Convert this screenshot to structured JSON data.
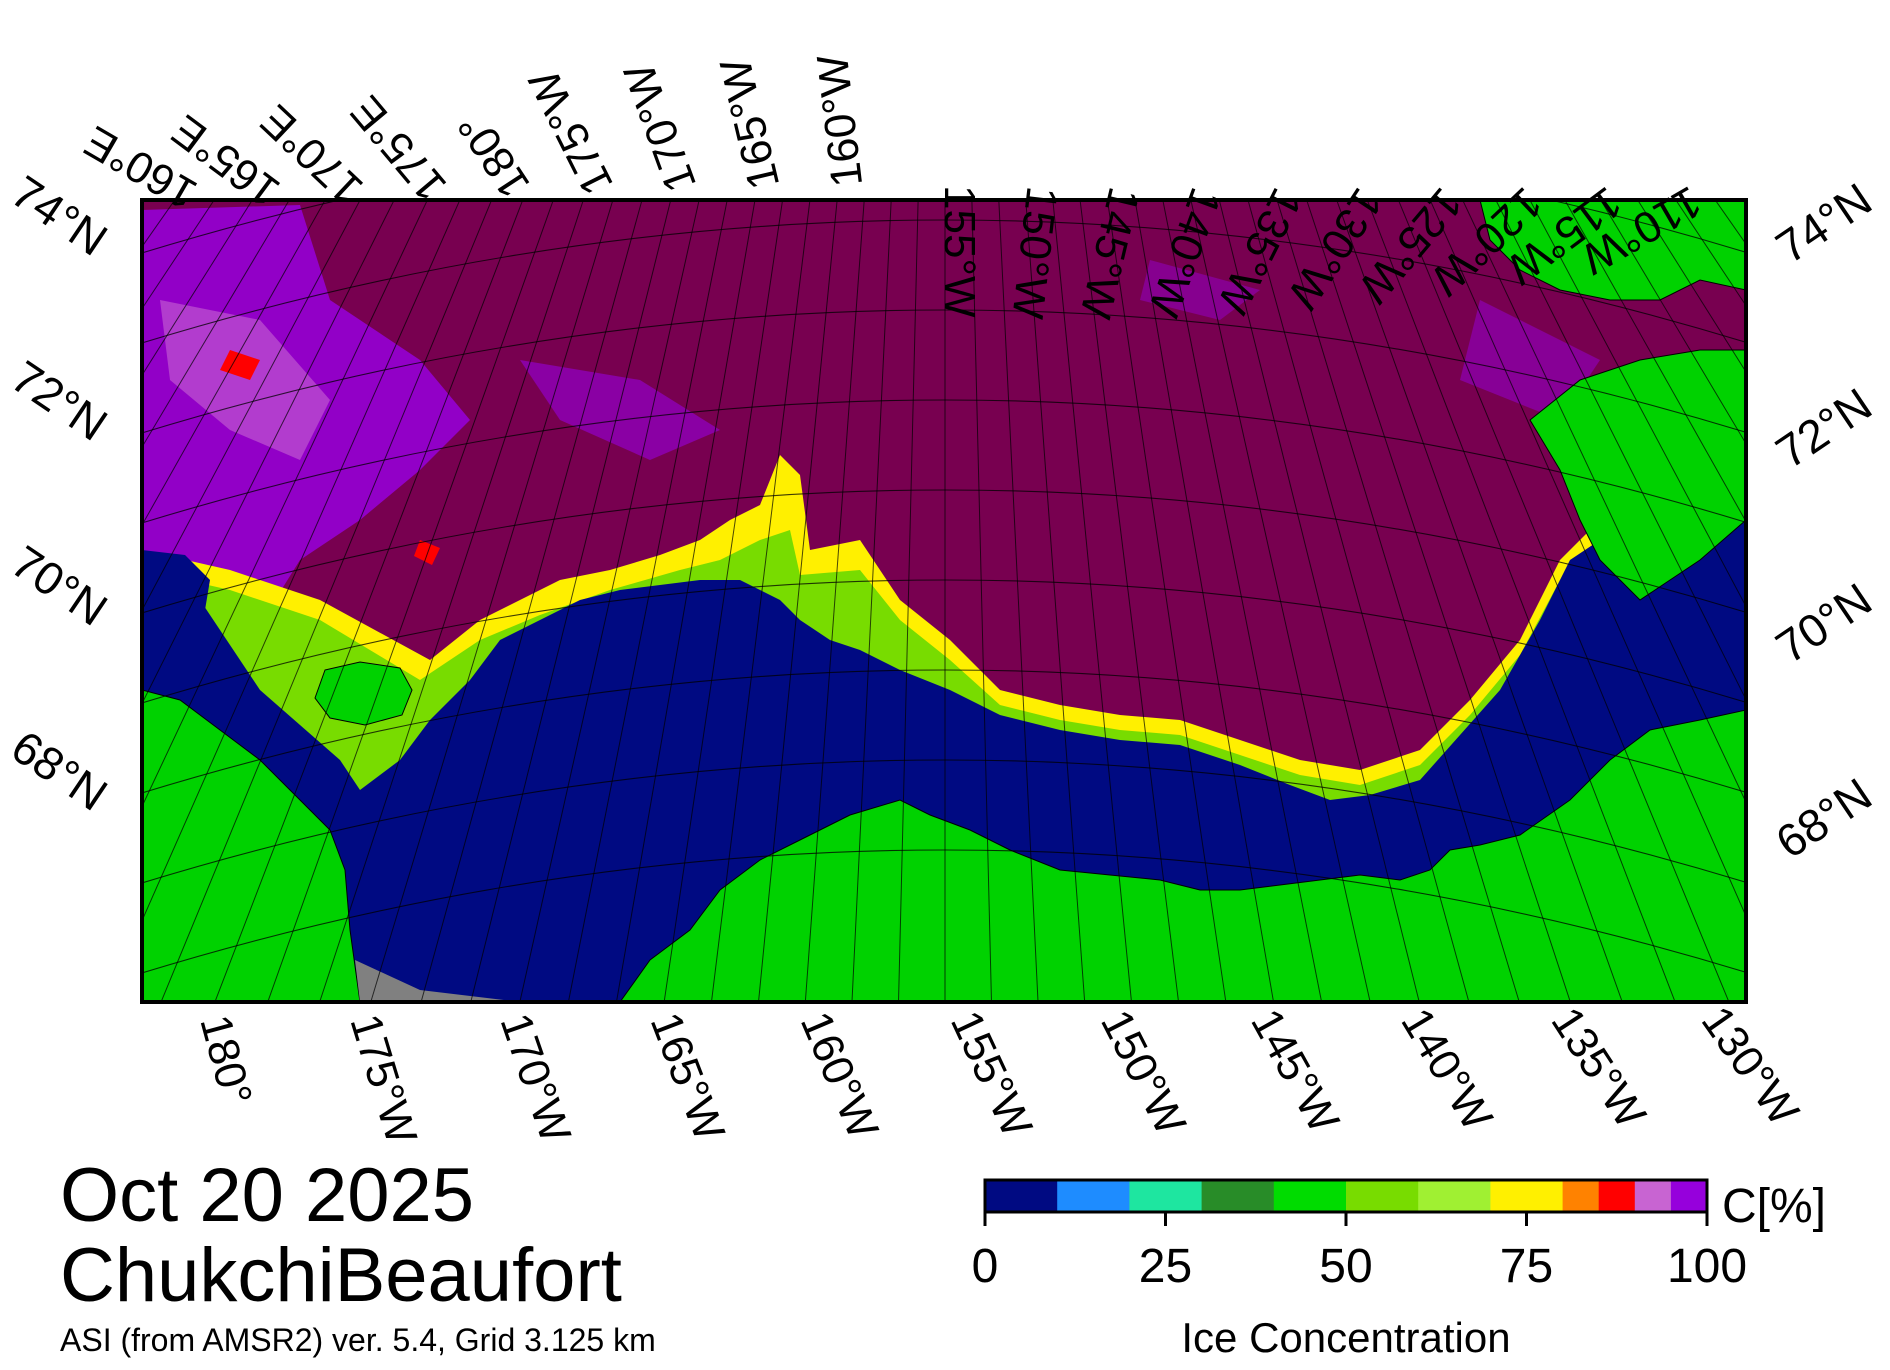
{
  "title": {
    "date": "Oct 20 2025",
    "region": "ChukchiBeaufort",
    "source": "ASI (from AMSR2) ver. 5.4,  Grid 3.125 km"
  },
  "map": {
    "top_labels": [
      "160°E",
      "165°E",
      "170°E",
      "175°E",
      "180°",
      "175°W",
      "170°W",
      "165°W",
      "160°W",
      "155°W",
      "150°W",
      "145°W",
      "140°W",
      "135°W",
      "130°W",
      "125°W",
      "120°W",
      "115°W",
      "110°W"
    ],
    "bottom_labels": [
      "180°",
      "175°W",
      "170°W",
      "165°W",
      "160°W",
      "155°W",
      "150°W",
      "145°W",
      "140°W",
      "135°W",
      "130°W"
    ],
    "left_labels": [
      "74°N",
      "72°N",
      "70°N",
      "68°N"
    ],
    "right_labels": [
      "74°N",
      "72°N",
      "70°N",
      "68°N"
    ],
    "colors": {
      "open_water": "#000a82",
      "land": "#00d200",
      "ice_100": "#780050",
      "no_data": "#808080",
      "frame": "#000000"
    }
  },
  "colorbar": {
    "label": "Ice Concentration",
    "unit": "C[%]",
    "ticks": [
      "0",
      "25",
      "50",
      "75",
      "100"
    ],
    "bins": [
      {
        "from": 0,
        "to": 10,
        "color": "#000a82"
      },
      {
        "from": 10,
        "to": 20,
        "color": "#1e8cff"
      },
      {
        "from": 20,
        "to": 30,
        "color": "#1ee6a0"
      },
      {
        "from": 30,
        "to": 40,
        "color": "#288c28"
      },
      {
        "from": 40,
        "to": 50,
        "color": "#00dc00"
      },
      {
        "from": 50,
        "to": 60,
        "color": "#78dc00"
      },
      {
        "from": 60,
        "to": 70,
        "color": "#a0f032"
      },
      {
        "from": 70,
        "to": 80,
        "color": "#fff000"
      },
      {
        "from": 80,
        "to": 85,
        "color": "#ff8200"
      },
      {
        "from": 85,
        "to": 90,
        "color": "#ff0000"
      },
      {
        "from": 90,
        "to": 95,
        "color": "#c864d2"
      },
      {
        "from": 95,
        "to": 100,
        "color": "#9600dc"
      }
    ]
  }
}
